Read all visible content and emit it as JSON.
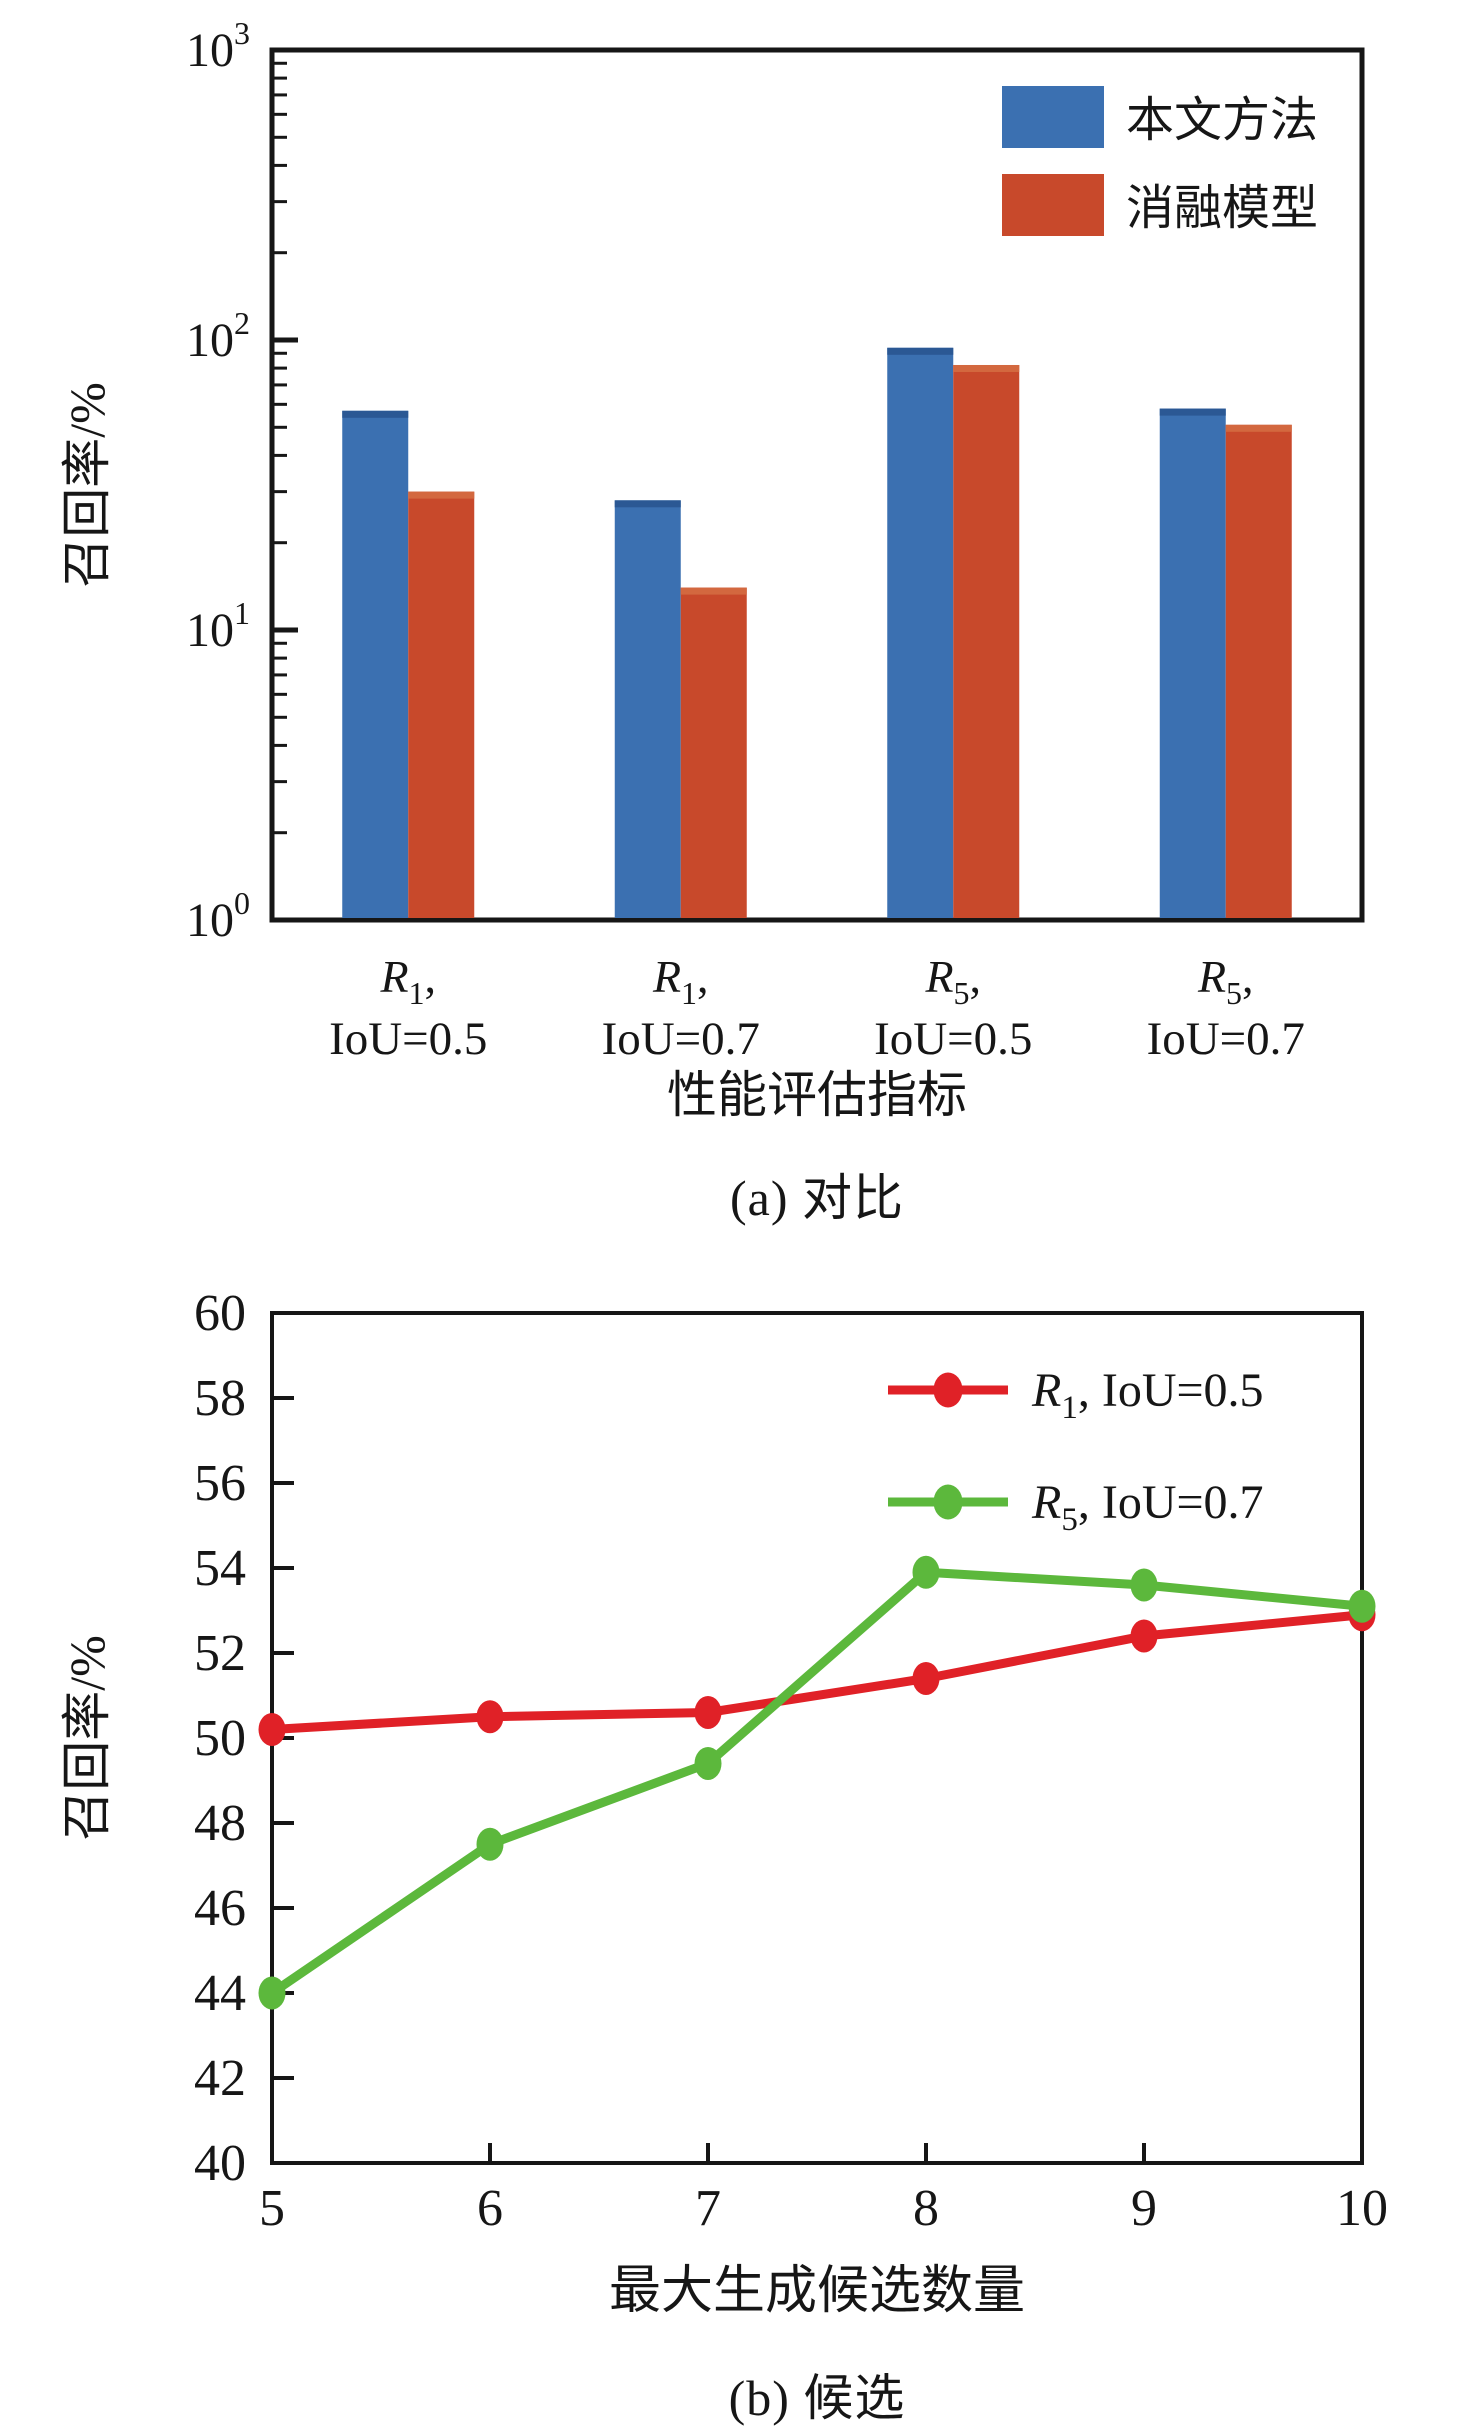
{
  "figure": {
    "caption_a": "(a) 对比",
    "caption_b": "(b) 候选"
  },
  "chart_data": [
    {
      "type": "bar",
      "yscale": "log",
      "ylim": [
        1,
        1000
      ],
      "ytick_exponents": [
        0,
        1,
        2,
        3
      ],
      "ylabel": "召回率/%",
      "xlabel": "性能评估指标",
      "grid": false,
      "legend_position": "top-right-inside",
      "categories": [
        {
          "sym": "R",
          "sub": "1",
          "suffix": ",",
          "line2": "IoU=0.5"
        },
        {
          "sym": "R",
          "sub": "1",
          "suffix": ",",
          "line2": "IoU=0.7"
        },
        {
          "sym": "R",
          "sub": "5",
          "suffix": ",",
          "line2": "IoU=0.5"
        },
        {
          "sym": "R",
          "sub": "5",
          "suffix": ",",
          "line2": "IoU=0.7"
        }
      ],
      "series": [
        {
          "name": "本文方法",
          "color": "#3b70b1",
          "cap_color": "#2b5894",
          "values": [
            57,
            28,
            94,
            58
          ]
        },
        {
          "name": "消融模型",
          "color": "#c8492b",
          "cap_color": "#d3683f",
          "values": [
            30,
            14,
            82,
            51
          ]
        }
      ]
    },
    {
      "type": "line",
      "ylim": [
        40,
        60
      ],
      "ytick_step": 2,
      "xlim": [
        5,
        10
      ],
      "x": [
        5,
        6,
        7,
        8,
        9,
        10
      ],
      "ylabel": "召回率/%",
      "xlabel": "最大生成候选数量",
      "grid": false,
      "legend_position": "top-right-inside",
      "series": [
        {
          "name": "R1, IoU=0.5",
          "sym": "R",
          "sub": "1",
          "rest": ", IoU=0.5",
          "color": "#e02127",
          "values": [
            50.2,
            50.5,
            50.6,
            51.4,
            52.4,
            52.9
          ]
        },
        {
          "name": "R5, IoU=0.7",
          "sym": "R",
          "sub": "5",
          "rest": ", IoU=0.7",
          "color": "#5cb83c",
          "values": [
            44.0,
            47.5,
            49.4,
            53.9,
            53.6,
            53.1
          ]
        }
      ]
    }
  ]
}
